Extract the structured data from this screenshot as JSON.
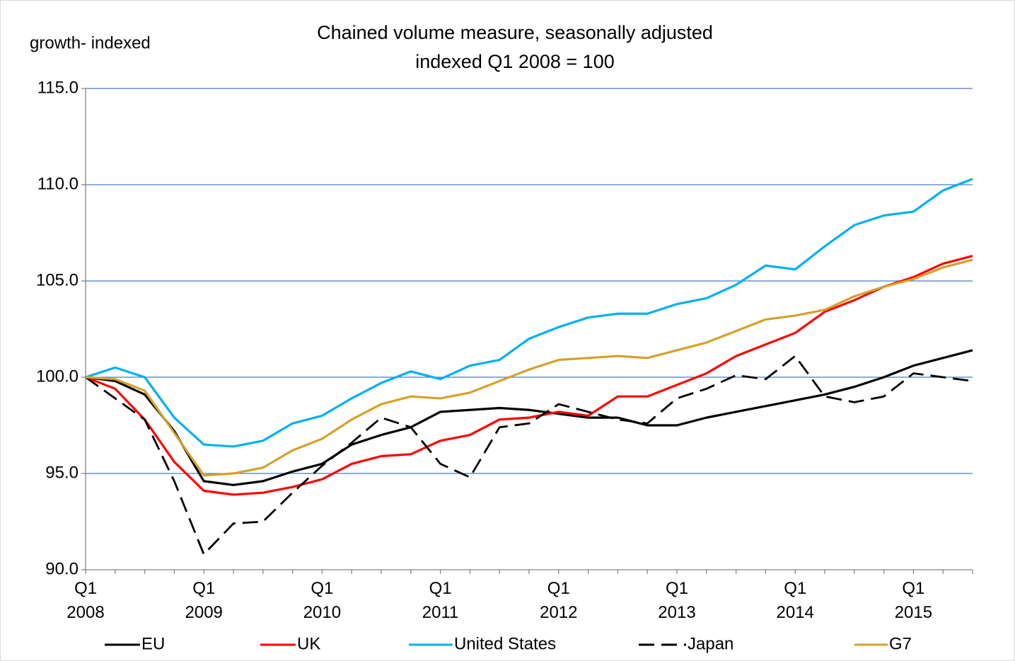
{
  "chart_data": {
    "type": "line",
    "title": "Chained volume measure, seasonally adjusted",
    "subtitle": "indexed Q1 2008 = 100",
    "y_label": "growth- indexed",
    "categories": [
      "Q1 2008",
      null,
      null,
      null,
      "Q1 2009",
      null,
      null,
      null,
      "Q1 2010",
      null,
      null,
      null,
      "Q1 2011",
      null,
      null,
      null,
      "Q1 2012",
      null,
      null,
      null,
      "Q1 2013",
      null,
      null,
      null,
      "Q1 2014",
      null,
      null,
      null,
      "Q1 2015",
      null,
      null
    ],
    "ylim": [
      90,
      115
    ],
    "yticks": [
      {
        "value": 90,
        "label": "90.0"
      },
      {
        "value": 95,
        "label": "95.0"
      },
      {
        "value": 100,
        "label": "100.0"
      },
      {
        "value": 105,
        "label": "105.0"
      },
      {
        "value": 110,
        "label": "110.0"
      },
      {
        "value": 115,
        "label": "115.0"
      }
    ],
    "grid": true,
    "legend": "bottom",
    "series": [
      {
        "name": "EU",
        "color": "#000000",
        "dashed": false,
        "values": [
          100,
          99.8,
          99.1,
          97.2,
          94.6,
          94.4,
          94.6,
          95.1,
          95.5,
          96.5,
          97.0,
          97.4,
          98.2,
          98.3,
          98.4,
          98.3,
          98.1,
          97.9,
          97.9,
          97.5,
          97.5,
          97.9,
          98.2,
          98.5,
          98.8,
          99.1,
          99.5,
          100.0,
          100.6,
          101.0,
          101.4
        ]
      },
      {
        "name": "UK",
        "color": "#ff0000",
        "dashed": false,
        "values": [
          100,
          99.4,
          97.8,
          95.6,
          94.1,
          93.9,
          94.0,
          94.3,
          94.7,
          95.5,
          95.9,
          96.0,
          96.7,
          97.0,
          97.8,
          97.9,
          98.2,
          98.0,
          99.0,
          99.0,
          99.6,
          100.2,
          101.1,
          101.7,
          102.3,
          103.4,
          104.0,
          104.7,
          105.2,
          105.9,
          106.3
        ]
      },
      {
        "name": "United States",
        "color": "#00b0f0",
        "dashed": false,
        "values": [
          100,
          100.5,
          100.0,
          97.9,
          96.5,
          96.4,
          96.7,
          97.6,
          98.0,
          98.9,
          99.7,
          100.3,
          99.9,
          100.6,
          100.9,
          102.0,
          102.6,
          103.1,
          103.3,
          103.3,
          103.8,
          104.1,
          104.8,
          105.8,
          105.6,
          106.8,
          107.9,
          108.4,
          108.6,
          109.7,
          110.3
        ]
      },
      {
        "name": "Japan",
        "color": "#000000",
        "dashed": true,
        "values": [
          100,
          98.9,
          97.8,
          94.6,
          90.8,
          92.4,
          92.5,
          94.0,
          95.4,
          96.6,
          97.9,
          97.4,
          95.5,
          94.8,
          97.4,
          97.6,
          98.6,
          98.2,
          97.8,
          97.6,
          98.9,
          99.4,
          100.1,
          99.9,
          101.1,
          99.0,
          98.7,
          99.0,
          100.2,
          100.0,
          99.8
        ]
      },
      {
        "name": "G7",
        "color": "#d4a12a",
        "dashed": false,
        "values": [
          100,
          99.9,
          99.3,
          97.1,
          94.9,
          95.0,
          95.3,
          96.2,
          96.8,
          97.8,
          98.6,
          99.0,
          98.9,
          99.2,
          99.8,
          100.4,
          100.9,
          101.0,
          101.1,
          101.0,
          101.4,
          101.8,
          102.4,
          103.0,
          103.2,
          103.5,
          104.2,
          104.7,
          105.1,
          105.7,
          106.1
        ]
      }
    ]
  }
}
